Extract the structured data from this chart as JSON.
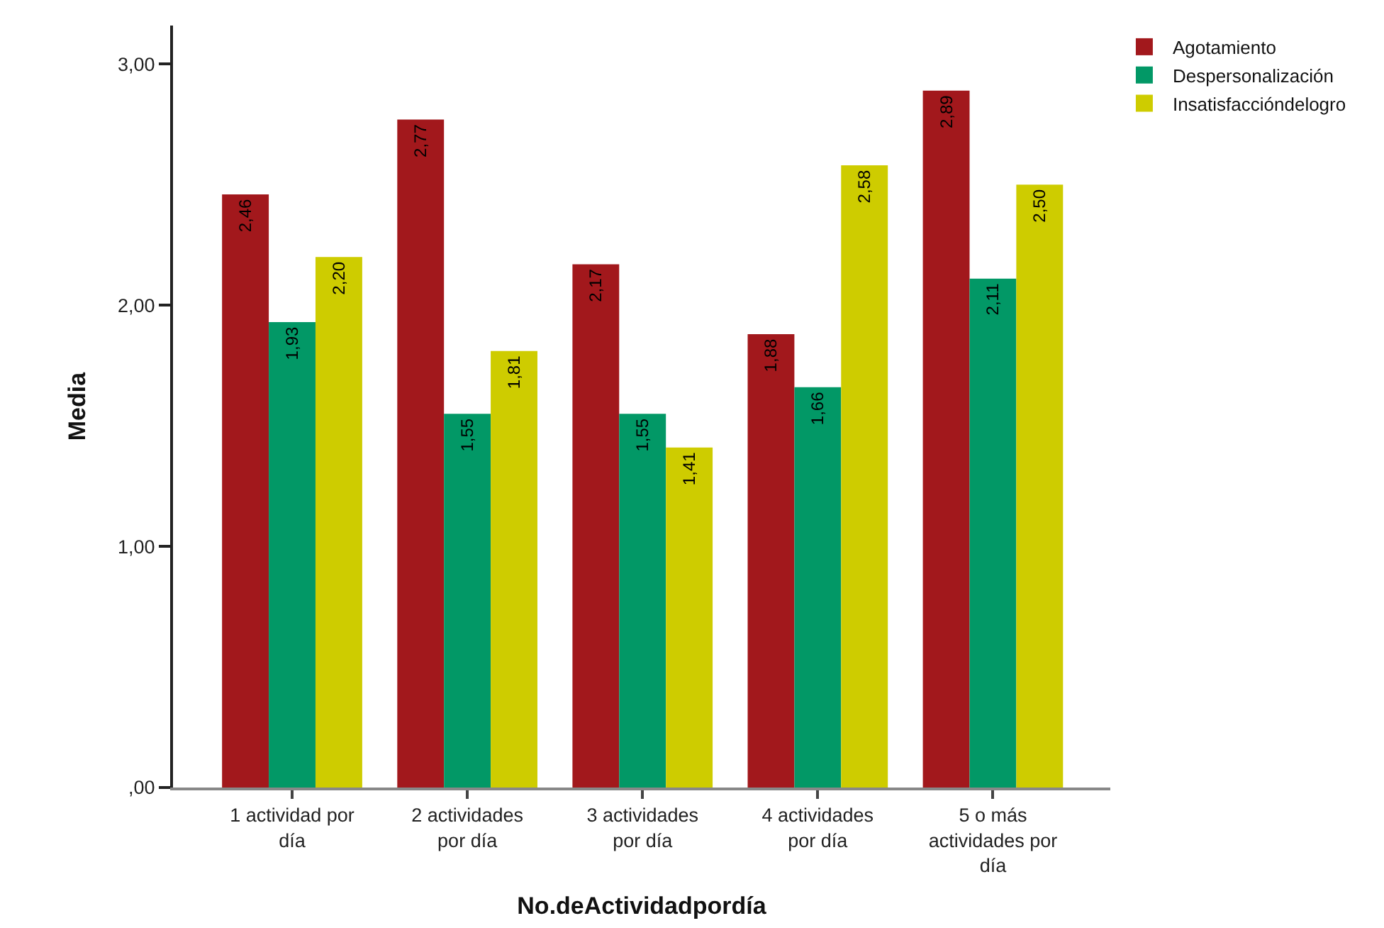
{
  "chart_data": {
    "type": "bar",
    "xlabel": "No.deActividadpordía",
    "ylabel": "Media",
    "categories": [
      "1 actividad por día",
      "2 actividades por día",
      "3 actividades por día",
      "4 actividades por día",
      "5 o más actividades por día"
    ],
    "series": [
      {
        "name": "Agotamiento",
        "color": "#a2181c",
        "values": [
          2.46,
          2.77,
          2.17,
          1.88,
          2.89
        ],
        "value_labels": [
          "2,46",
          "2,77",
          "2,17",
          "1,88",
          "2,89"
        ]
      },
      {
        "name": "Despersonalización",
        "color": "#029866",
        "values": [
          1.93,
          1.55,
          1.55,
          1.66,
          2.11
        ],
        "value_labels": [
          "1,93",
          "1,55",
          "1,55",
          "1,66",
          "2,11"
        ]
      },
      {
        "name": "Insatisfaccióndelogro",
        "color": "#cecc00",
        "values": [
          2.2,
          1.81,
          1.41,
          2.58,
          2.5
        ],
        "value_labels": [
          "2,20",
          "1,81",
          "1,41",
          "2,58",
          "2,50"
        ]
      }
    ],
    "ylim": [
      0,
      3.16
    ],
    "yticks": [
      {
        "value": 0,
        "label": ",00"
      },
      {
        "value": 1,
        "label": "1,00"
      },
      {
        "value": 2,
        "label": "2,00"
      },
      {
        "value": 3,
        "label": "3,00"
      }
    ],
    "grid": false,
    "legend": "top right"
  }
}
